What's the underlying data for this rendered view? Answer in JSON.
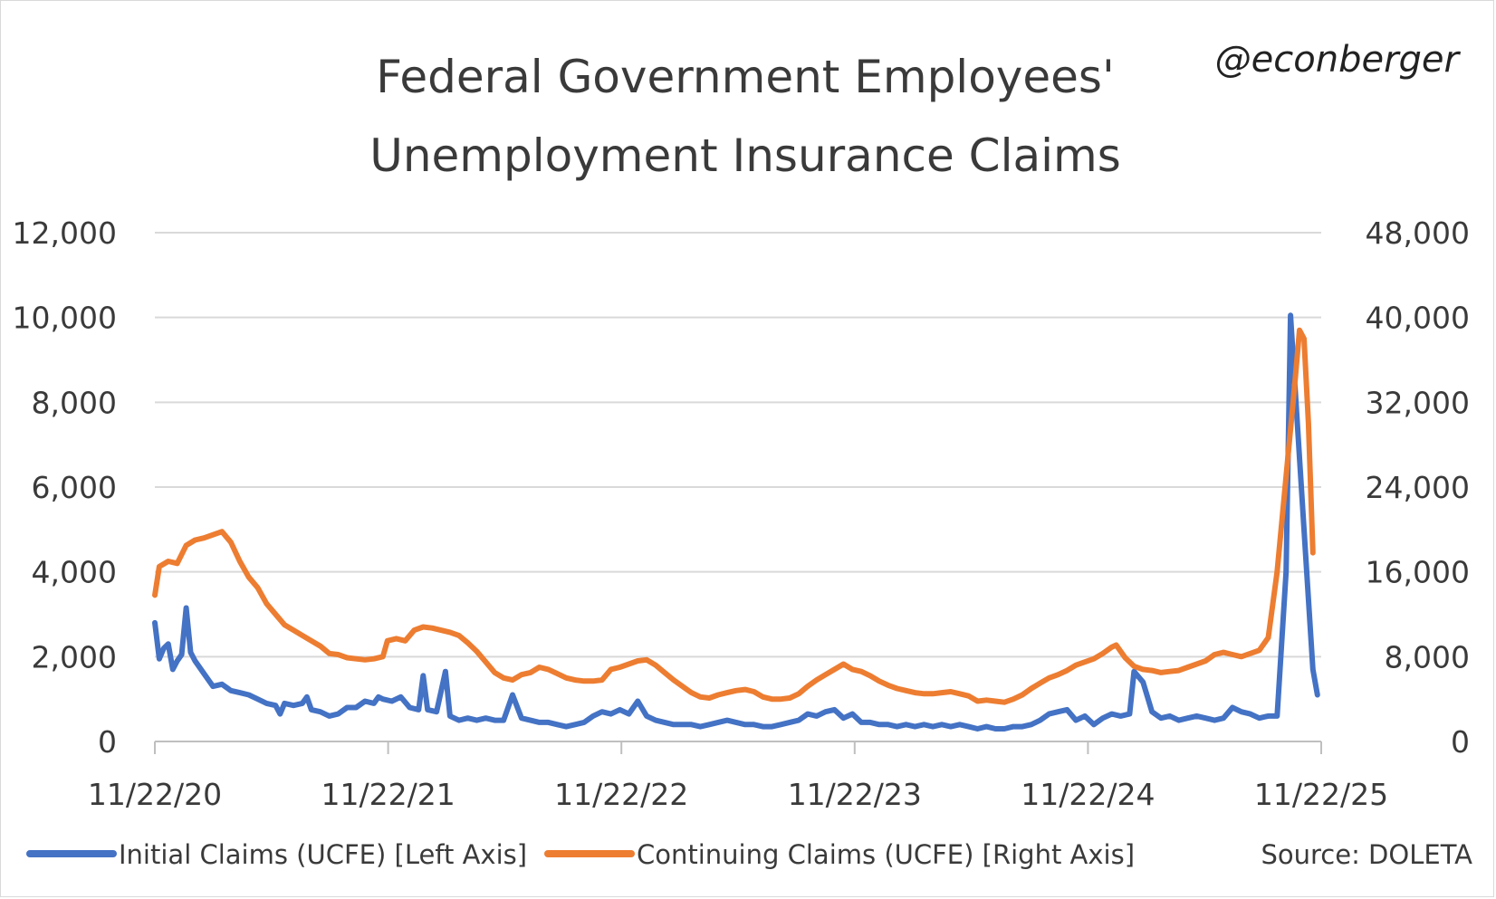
{
  "chart_data": {
    "type": "line",
    "title_line1": "Federal Government Employees'",
    "title_line2": "Unemployment Insurance Claims",
    "handle": "@econberger",
    "source": "Source: DOLETA",
    "x_ticks": [
      "11/22/20",
      "11/22/21",
      "11/22/22",
      "11/22/23",
      "11/22/24",
      "11/22/25"
    ],
    "y_left": {
      "ticks": [
        "0",
        "2,000",
        "4,000",
        "6,000",
        "8,000",
        "10,000",
        "12,000"
      ],
      "ylim": [
        0,
        12000
      ]
    },
    "y_right": {
      "ticks": [
        "0",
        "8,000",
        "16,000",
        "24,000",
        "32,000",
        "40,000",
        "48,000"
      ],
      "ylim": [
        0,
        48000
      ]
    },
    "grid": true,
    "legend_position": "bottom",
    "series": [
      {
        "name": "Initial Claims (UCFE) [Left Axis]",
        "axis": "left",
        "color": "#4472C4",
        "points": [
          [
            "2020-11-22",
            2800
          ],
          [
            "2020-11-29",
            1950
          ],
          [
            "2020-12-06",
            2200
          ],
          [
            "2020-12-13",
            2300
          ],
          [
            "2020-12-20",
            1700
          ],
          [
            "2020-12-27",
            1900
          ],
          [
            "2021-01-03",
            2050
          ],
          [
            "2021-01-10",
            3150
          ],
          [
            "2021-01-17",
            2100
          ],
          [
            "2021-01-24",
            1900
          ],
          [
            "2021-02-07",
            1600
          ],
          [
            "2021-02-21",
            1300
          ],
          [
            "2021-03-07",
            1350
          ],
          [
            "2021-03-21",
            1200
          ],
          [
            "2021-04-04",
            1150
          ],
          [
            "2021-04-18",
            1100
          ],
          [
            "2021-05-02",
            1000
          ],
          [
            "2021-05-16",
            900
          ],
          [
            "2021-05-30",
            850
          ],
          [
            "2021-06-06",
            650
          ],
          [
            "2021-06-13",
            900
          ],
          [
            "2021-06-27",
            850
          ],
          [
            "2021-07-11",
            900
          ],
          [
            "2021-07-18",
            1050
          ],
          [
            "2021-07-25",
            750
          ],
          [
            "2021-08-08",
            700
          ],
          [
            "2021-08-22",
            600
          ],
          [
            "2021-09-05",
            650
          ],
          [
            "2021-09-19",
            800
          ],
          [
            "2021-10-03",
            800
          ],
          [
            "2021-10-17",
            950
          ],
          [
            "2021-10-31",
            900
          ],
          [
            "2021-11-07",
            1050
          ],
          [
            "2021-11-14",
            1000
          ],
          [
            "2021-11-28",
            950
          ],
          [
            "2021-12-12",
            1050
          ],
          [
            "2021-12-26",
            800
          ],
          [
            "2022-01-09",
            750
          ],
          [
            "2022-01-16",
            1550
          ],
          [
            "2022-01-23",
            750
          ],
          [
            "2022-02-06",
            700
          ],
          [
            "2022-02-20",
            1650
          ],
          [
            "2022-02-27",
            600
          ],
          [
            "2022-03-13",
            500
          ],
          [
            "2022-03-27",
            550
          ],
          [
            "2022-04-10",
            500
          ],
          [
            "2022-04-24",
            550
          ],
          [
            "2022-05-08",
            500
          ],
          [
            "2022-05-22",
            500
          ],
          [
            "2022-06-05",
            1100
          ],
          [
            "2022-06-19",
            550
          ],
          [
            "2022-07-03",
            500
          ],
          [
            "2022-07-17",
            450
          ],
          [
            "2022-07-31",
            450
          ],
          [
            "2022-08-14",
            400
          ],
          [
            "2022-08-28",
            350
          ],
          [
            "2022-09-11",
            400
          ],
          [
            "2022-09-25",
            450
          ],
          [
            "2022-10-09",
            600
          ],
          [
            "2022-10-23",
            700
          ],
          [
            "2022-11-06",
            650
          ],
          [
            "2022-11-20",
            750
          ],
          [
            "2022-12-04",
            650
          ],
          [
            "2022-12-18",
            950
          ],
          [
            "2023-01-01",
            600
          ],
          [
            "2023-01-15",
            500
          ],
          [
            "2023-01-29",
            450
          ],
          [
            "2023-02-12",
            400
          ],
          [
            "2023-02-26",
            400
          ],
          [
            "2023-03-12",
            400
          ],
          [
            "2023-03-26",
            350
          ],
          [
            "2023-04-09",
            400
          ],
          [
            "2023-04-23",
            450
          ],
          [
            "2023-05-07",
            500
          ],
          [
            "2023-05-21",
            450
          ],
          [
            "2023-06-04",
            400
          ],
          [
            "2023-06-18",
            400
          ],
          [
            "2023-07-02",
            350
          ],
          [
            "2023-07-16",
            350
          ],
          [
            "2023-07-30",
            400
          ],
          [
            "2023-08-13",
            450
          ],
          [
            "2023-08-27",
            500
          ],
          [
            "2023-09-10",
            650
          ],
          [
            "2023-09-24",
            600
          ],
          [
            "2023-10-08",
            700
          ],
          [
            "2023-10-22",
            750
          ],
          [
            "2023-11-05",
            550
          ],
          [
            "2023-11-19",
            650
          ],
          [
            "2023-12-03",
            450
          ],
          [
            "2023-12-17",
            450
          ],
          [
            "2023-12-31",
            400
          ],
          [
            "2024-01-14",
            400
          ],
          [
            "2024-01-28",
            350
          ],
          [
            "2024-02-11",
            400
          ],
          [
            "2024-02-25",
            350
          ],
          [
            "2024-03-10",
            400
          ],
          [
            "2024-03-24",
            350
          ],
          [
            "2024-04-07",
            400
          ],
          [
            "2024-04-21",
            350
          ],
          [
            "2024-05-05",
            400
          ],
          [
            "2024-05-19",
            350
          ],
          [
            "2024-06-02",
            300
          ],
          [
            "2024-06-16",
            350
          ],
          [
            "2024-06-30",
            300
          ],
          [
            "2024-07-14",
            300
          ],
          [
            "2024-07-28",
            350
          ],
          [
            "2024-08-11",
            350
          ],
          [
            "2024-08-25",
            400
          ],
          [
            "2024-09-08",
            500
          ],
          [
            "2024-09-22",
            650
          ],
          [
            "2024-10-06",
            700
          ],
          [
            "2024-10-20",
            750
          ],
          [
            "2024-11-03",
            500
          ],
          [
            "2024-11-17",
            600
          ],
          [
            "2024-12-01",
            400
          ],
          [
            "2024-12-15",
            550
          ],
          [
            "2024-12-29",
            650
          ],
          [
            "2025-01-12",
            600
          ],
          [
            "2025-01-26",
            650
          ],
          [
            "2025-02-02",
            1650
          ],
          [
            "2025-02-16",
            1400
          ],
          [
            "2025-03-02",
            700
          ],
          [
            "2025-03-16",
            550
          ],
          [
            "2025-03-30",
            600
          ],
          [
            "2025-04-13",
            500
          ],
          [
            "2025-04-27",
            550
          ],
          [
            "2025-05-11",
            600
          ],
          [
            "2025-05-25",
            550
          ],
          [
            "2025-06-08",
            500
          ],
          [
            "2025-06-22",
            550
          ],
          [
            "2025-07-06",
            800
          ],
          [
            "2025-07-20",
            700
          ],
          [
            "2025-08-03",
            650
          ],
          [
            "2025-08-17",
            550
          ],
          [
            "2025-08-31",
            600
          ],
          [
            "2025-09-14",
            600
          ],
          [
            "2025-09-28",
            4000
          ],
          [
            "2025-10-05",
            10050
          ],
          [
            "2025-10-26",
            5000
          ],
          [
            "2025-11-09",
            1700
          ],
          [
            "2025-11-16",
            1100
          ]
        ]
      },
      {
        "name": "Continuing Claims (UCFE) [Right Axis]",
        "axis": "right",
        "color": "#ED7D31",
        "points": [
          [
            "2020-11-22",
            13800
          ],
          [
            "2020-11-29",
            16500
          ],
          [
            "2020-12-13",
            17000
          ],
          [
            "2020-12-27",
            16800
          ],
          [
            "2021-01-10",
            18500
          ],
          [
            "2021-01-24",
            19000
          ],
          [
            "2021-02-07",
            19200
          ],
          [
            "2021-02-21",
            19500
          ],
          [
            "2021-03-07",
            19800
          ],
          [
            "2021-03-21",
            18800
          ],
          [
            "2021-04-04",
            17000
          ],
          [
            "2021-04-18",
            15500
          ],
          [
            "2021-05-02",
            14500
          ],
          [
            "2021-05-16",
            13000
          ],
          [
            "2021-05-30",
            12000
          ],
          [
            "2021-06-13",
            11000
          ],
          [
            "2021-06-27",
            10500
          ],
          [
            "2021-07-11",
            10000
          ],
          [
            "2021-07-25",
            9500
          ],
          [
            "2021-08-08",
            9000
          ],
          [
            "2021-08-22",
            8300
          ],
          [
            "2021-09-05",
            8200
          ],
          [
            "2021-09-19",
            7900
          ],
          [
            "2021-10-03",
            7800
          ],
          [
            "2021-10-17",
            7700
          ],
          [
            "2021-10-31",
            7800
          ],
          [
            "2021-11-14",
            8000
          ],
          [
            "2021-11-21",
            9500
          ],
          [
            "2021-12-05",
            9700
          ],
          [
            "2021-12-19",
            9500
          ],
          [
            "2022-01-02",
            10500
          ],
          [
            "2022-01-16",
            10800
          ],
          [
            "2022-01-30",
            10700
          ],
          [
            "2022-02-13",
            10500
          ],
          [
            "2022-02-27",
            10300
          ],
          [
            "2022-03-13",
            10000
          ],
          [
            "2022-03-27",
            9300
          ],
          [
            "2022-04-10",
            8500
          ],
          [
            "2022-04-24",
            7500
          ],
          [
            "2022-05-08",
            6500
          ],
          [
            "2022-05-22",
            6000
          ],
          [
            "2022-06-05",
            5800
          ],
          [
            "2022-06-19",
            6300
          ],
          [
            "2022-07-03",
            6500
          ],
          [
            "2022-07-17",
            7000
          ],
          [
            "2022-07-31",
            6800
          ],
          [
            "2022-08-14",
            6400
          ],
          [
            "2022-08-28",
            6000
          ],
          [
            "2022-09-11",
            5800
          ],
          [
            "2022-09-25",
            5700
          ],
          [
            "2022-10-09",
            5700
          ],
          [
            "2022-10-23",
            5800
          ],
          [
            "2022-11-06",
            6800
          ],
          [
            "2022-11-20",
            7000
          ],
          [
            "2022-12-04",
            7300
          ],
          [
            "2022-12-18",
            7600
          ],
          [
            "2023-01-01",
            7700
          ],
          [
            "2023-01-15",
            7200
          ],
          [
            "2023-01-29",
            6500
          ],
          [
            "2023-02-12",
            5800
          ],
          [
            "2023-02-26",
            5200
          ],
          [
            "2023-03-12",
            4600
          ],
          [
            "2023-03-26",
            4200
          ],
          [
            "2023-04-09",
            4100
          ],
          [
            "2023-04-23",
            4400
          ],
          [
            "2023-05-07",
            4600
          ],
          [
            "2023-05-21",
            4800
          ],
          [
            "2023-06-04",
            4900
          ],
          [
            "2023-06-18",
            4700
          ],
          [
            "2023-07-02",
            4200
          ],
          [
            "2023-07-16",
            4000
          ],
          [
            "2023-07-30",
            4000
          ],
          [
            "2023-08-13",
            4100
          ],
          [
            "2023-08-27",
            4500
          ],
          [
            "2023-09-10",
            5200
          ],
          [
            "2023-09-24",
            5800
          ],
          [
            "2023-10-08",
            6300
          ],
          [
            "2023-10-22",
            6800
          ],
          [
            "2023-11-05",
            7300
          ],
          [
            "2023-11-19",
            6800
          ],
          [
            "2023-12-03",
            6600
          ],
          [
            "2023-12-17",
            6200
          ],
          [
            "2023-12-31",
            5700
          ],
          [
            "2024-01-14",
            5300
          ],
          [
            "2024-01-28",
            5000
          ],
          [
            "2024-02-11",
            4800
          ],
          [
            "2024-02-25",
            4600
          ],
          [
            "2024-03-10",
            4500
          ],
          [
            "2024-03-24",
            4500
          ],
          [
            "2024-04-07",
            4600
          ],
          [
            "2024-04-21",
            4700
          ],
          [
            "2024-05-05",
            4500
          ],
          [
            "2024-05-19",
            4300
          ],
          [
            "2024-06-02",
            3800
          ],
          [
            "2024-06-16",
            3900
          ],
          [
            "2024-06-30",
            3800
          ],
          [
            "2024-07-14",
            3700
          ],
          [
            "2024-07-28",
            4000
          ],
          [
            "2024-08-11",
            4400
          ],
          [
            "2024-08-25",
            5000
          ],
          [
            "2024-09-08",
            5500
          ],
          [
            "2024-09-22",
            6000
          ],
          [
            "2024-10-06",
            6300
          ],
          [
            "2024-10-20",
            6700
          ],
          [
            "2024-11-03",
            7200
          ],
          [
            "2024-11-17",
            7500
          ],
          [
            "2024-12-01",
            7800
          ],
          [
            "2024-12-15",
            8300
          ],
          [
            "2024-12-29",
            8900
          ],
          [
            "2025-01-05",
            9100
          ],
          [
            "2025-01-19",
            7900
          ],
          [
            "2025-02-02",
            7100
          ],
          [
            "2025-02-16",
            6800
          ],
          [
            "2025-03-02",
            6700
          ],
          [
            "2025-03-16",
            6500
          ],
          [
            "2025-03-30",
            6600
          ],
          [
            "2025-04-13",
            6700
          ],
          [
            "2025-04-27",
            7000
          ],
          [
            "2025-05-11",
            7300
          ],
          [
            "2025-05-25",
            7600
          ],
          [
            "2025-06-08",
            8200
          ],
          [
            "2025-06-22",
            8400
          ],
          [
            "2025-07-06",
            8200
          ],
          [
            "2025-07-20",
            8000
          ],
          [
            "2025-08-03",
            8300
          ],
          [
            "2025-08-17",
            8600
          ],
          [
            "2025-08-31",
            9800
          ],
          [
            "2025-09-14",
            16000
          ],
          [
            "2025-09-28",
            25000
          ],
          [
            "2025-10-12",
            34000
          ],
          [
            "2025-10-19",
            38800
          ],
          [
            "2025-10-26",
            38000
          ],
          [
            "2025-11-02",
            30000
          ],
          [
            "2025-11-09",
            17800
          ]
        ]
      }
    ]
  }
}
